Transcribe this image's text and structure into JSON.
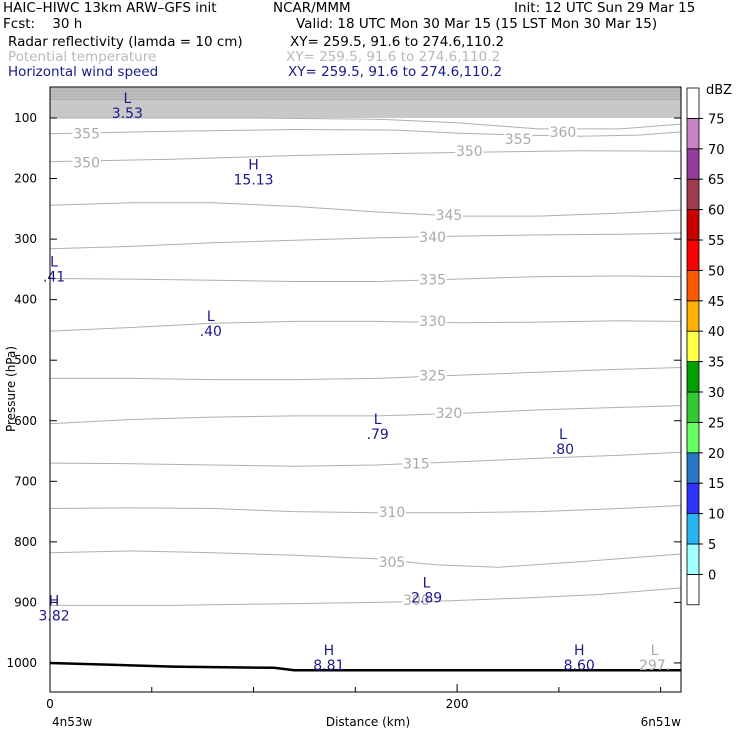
{
  "header": {
    "model": "HAIC–HIWC 13km ARW–GFS init",
    "center": "NCAR/MMM",
    "init": "Init: 12 UTC Sun 29 Mar 15",
    "fcst": "Fcst:    30 h",
    "valid": "Valid: 18 UTC Mon 30 Mar 15 (15 LST Mon 30 Mar 15)",
    "field1_name": "Radar reflectivity (lamda = 10 cm)",
    "field1_xy": "XY= 259.5, 91.6 to 274.6,110.2",
    "field2_name": "Potential temperature",
    "field2_xy": "XY= 259.5, 91.6 to 274.6,110.2",
    "field3_name": "Horizontal wind speed",
    "field3_xy": "XY= 259.5, 91.6 to 274.6,110.2"
  },
  "colors": {
    "contour": "#b0b0b0",
    "label_gray": "#aaaaaa",
    "wind_label": "#1a1a8c",
    "terrain": "#000000",
    "top_shade": "#c8c8c8"
  },
  "chart_data": {
    "type": "cross-section",
    "xlabel": "Distance (km)",
    "ylabel": "Pressure (hPa)",
    "x_start_label": "4n53w",
    "x_end_label": "6n51w",
    "xlim": [
      0,
      310
    ],
    "x_ticks": [
      0,
      200
    ],
    "y_scale": "pressure",
    "ylim": [
      1050,
      55
    ],
    "y_ticks": [
      100,
      200,
      300,
      400,
      500,
      600,
      700,
      800,
      900,
      1000
    ],
    "potential_temperature_contours": [
      {
        "theta": 360,
        "points": [
          [
            0,
            100
          ],
          [
            100,
            100
          ],
          [
            160,
            102
          ],
          [
            200,
            108
          ],
          [
            240,
            118
          ],
          [
            280,
            118
          ],
          [
            310,
            110
          ]
        ]
      },
      {
        "theta": 355,
        "points": [
          [
            0,
            126
          ],
          [
            60,
            122
          ],
          [
            120,
            119
          ],
          [
            170,
            120
          ],
          [
            200,
            125
          ],
          [
            230,
            128
          ],
          [
            260,
            130
          ],
          [
            290,
            128
          ],
          [
            310,
            123
          ]
        ]
      },
      {
        "theta": 350,
        "points": [
          [
            0,
            172
          ],
          [
            60,
            168
          ],
          [
            120,
            162
          ],
          [
            180,
            158
          ],
          [
            220,
            156
          ],
          [
            260,
            154
          ],
          [
            310,
            155
          ]
        ]
      },
      {
        "theta": 345,
        "points": [
          [
            0,
            244
          ],
          [
            40,
            240
          ],
          [
            80,
            240
          ],
          [
            120,
            246
          ],
          [
            160,
            255
          ],
          [
            200,
            262
          ],
          [
            240,
            262
          ],
          [
            280,
            257
          ],
          [
            310,
            252
          ]
        ]
      },
      {
        "theta": 340,
        "points": [
          [
            0,
            316
          ],
          [
            40,
            312
          ],
          [
            80,
            306
          ],
          [
            120,
            302
          ],
          [
            160,
            298
          ],
          [
            200,
            295
          ],
          [
            240,
            293
          ],
          [
            280,
            292
          ],
          [
            310,
            290
          ]
        ]
      },
      {
        "theta": 335,
        "points": [
          [
            0,
            365
          ],
          [
            40,
            366
          ],
          [
            80,
            368
          ],
          [
            120,
            370
          ],
          [
            160,
            370
          ],
          [
            200,
            366
          ],
          [
            240,
            362
          ],
          [
            280,
            361
          ],
          [
            310,
            362
          ]
        ]
      },
      {
        "theta": 330,
        "points": [
          [
            0,
            452
          ],
          [
            40,
            446
          ],
          [
            80,
            439
          ],
          [
            120,
            436
          ],
          [
            160,
            436
          ],
          [
            200,
            438
          ],
          [
            240,
            437
          ],
          [
            280,
            435
          ],
          [
            310,
            436
          ]
        ]
      },
      {
        "theta": 325,
        "points": [
          [
            0,
            530
          ],
          [
            40,
            530
          ],
          [
            80,
            532
          ],
          [
            120,
            532
          ],
          [
            160,
            530
          ],
          [
            200,
            525
          ],
          [
            240,
            520
          ],
          [
            280,
            515
          ],
          [
            310,
            512
          ]
        ]
      },
      {
        "theta": 320,
        "points": [
          [
            0,
            605
          ],
          [
            40,
            598
          ],
          [
            80,
            594
          ],
          [
            120,
            592
          ],
          [
            160,
            592
          ],
          [
            200,
            588
          ],
          [
            240,
            582
          ],
          [
            280,
            578
          ],
          [
            310,
            575
          ]
        ]
      },
      {
        "theta": 315,
        "points": [
          [
            0,
            670
          ],
          [
            40,
            671
          ],
          [
            80,
            673
          ],
          [
            120,
            675
          ],
          [
            160,
            673
          ],
          [
            200,
            668
          ],
          [
            240,
            662
          ],
          [
            280,
            657
          ],
          [
            310,
            652
          ]
        ]
      },
      {
        "theta": 310,
        "points": [
          [
            0,
            745
          ],
          [
            40,
            744
          ],
          [
            80,
            745
          ],
          [
            120,
            750
          ],
          [
            160,
            752
          ],
          [
            200,
            752
          ],
          [
            240,
            750
          ],
          [
            280,
            745
          ],
          [
            310,
            740
          ]
        ]
      },
      {
        "theta": 305,
        "points": [
          [
            0,
            818
          ],
          [
            40,
            815
          ],
          [
            80,
            818
          ],
          [
            120,
            822
          ],
          [
            160,
            828
          ],
          [
            190,
            838
          ],
          [
            220,
            842
          ],
          [
            260,
            833
          ],
          [
            310,
            820
          ]
        ]
      },
      {
        "theta": 300,
        "points": [
          [
            0,
            905
          ],
          [
            60,
            905
          ],
          [
            120,
            902
          ],
          [
            160,
            900
          ],
          [
            190,
            898
          ],
          [
            230,
            893
          ],
          [
            270,
            887
          ],
          [
            310,
            876
          ]
        ]
      }
    ],
    "contour_labels": [
      {
        "text": "360",
        "x": 252,
        "p": 125
      },
      {
        "text": "355",
        "x": 18,
        "p": 127
      },
      {
        "text": "355",
        "x": 230,
        "p": 136
      },
      {
        "text": "350",
        "x": 206,
        "p": 156
      },
      {
        "text": "350",
        "x": 18,
        "p": 175
      },
      {
        "text": "345",
        "x": 196,
        "p": 262
      },
      {
        "text": "340",
        "x": 188,
        "p": 298
      },
      {
        "text": "335",
        "x": 188,
        "p": 368
      },
      {
        "text": "330",
        "x": 188,
        "p": 437
      },
      {
        "text": "325",
        "x": 188,
        "p": 527
      },
      {
        "text": "320",
        "x": 196,
        "p": 589
      },
      {
        "text": "315",
        "x": 180,
        "p": 672
      },
      {
        "text": "310",
        "x": 168,
        "p": 752
      },
      {
        "text": "305",
        "x": 168,
        "p": 835
      },
      {
        "text": "300",
        "x": 180,
        "p": 898
      }
    ],
    "wind_extrema": [
      {
        "type": "L",
        "value": "3.53",
        "x": 38,
        "p": 80
      },
      {
        "type": "H",
        "value": "15.13",
        "x": 100,
        "p": 190
      },
      {
        "type": "L",
        "value": ".41",
        "x": 2,
        "p": 350
      },
      {
        "type": "L",
        "value": ".40",
        "x": 79,
        "p": 440
      },
      {
        "type": "L",
        "value": ".79",
        "x": 161,
        "p": 610
      },
      {
        "type": "L",
        "value": ".80",
        "x": 252,
        "p": 635
      },
      {
        "type": "L",
        "value": "2.89",
        "x": 185,
        "p": 880
      },
      {
        "type": "H",
        "value": "3.82",
        "x": 2,
        "p": 910
      },
      {
        "type": "H",
        "value": "8.81",
        "x": 137,
        "p": 992
      },
      {
        "type": "H",
        "value": "8.60",
        "x": 260,
        "p": 992
      },
      {
        "type": "L",
        "value": "297.",
        "x": 297,
        "p": 992
      }
    ],
    "terrain_surface": [
      [
        0,
        1000
      ],
      [
        30,
        1003
      ],
      [
        60,
        1006
      ],
      [
        110,
        1008
      ],
      [
        120,
        1012
      ],
      [
        200,
        1012
      ],
      [
        310,
        1012
      ]
    ],
    "colorbar": {
      "unit": "dBZ",
      "levels": [
        "0",
        "5",
        "10",
        "15",
        "20",
        "25",
        "30",
        "35",
        "40",
        "45",
        "50",
        "55",
        "60",
        "65",
        "70",
        "75"
      ],
      "colors": [
        "#ffffff",
        "#a0ffff",
        "#28b4f0",
        "#3232ff",
        "#2878c8",
        "#64ff64",
        "#32c832",
        "#00a000",
        "#ffff46",
        "#ffb000",
        "#ff5a00",
        "#ff0000",
        "#c80000",
        "#a03c50",
        "#963ca0",
        "#c882c8",
        "#ffffff"
      ]
    }
  }
}
